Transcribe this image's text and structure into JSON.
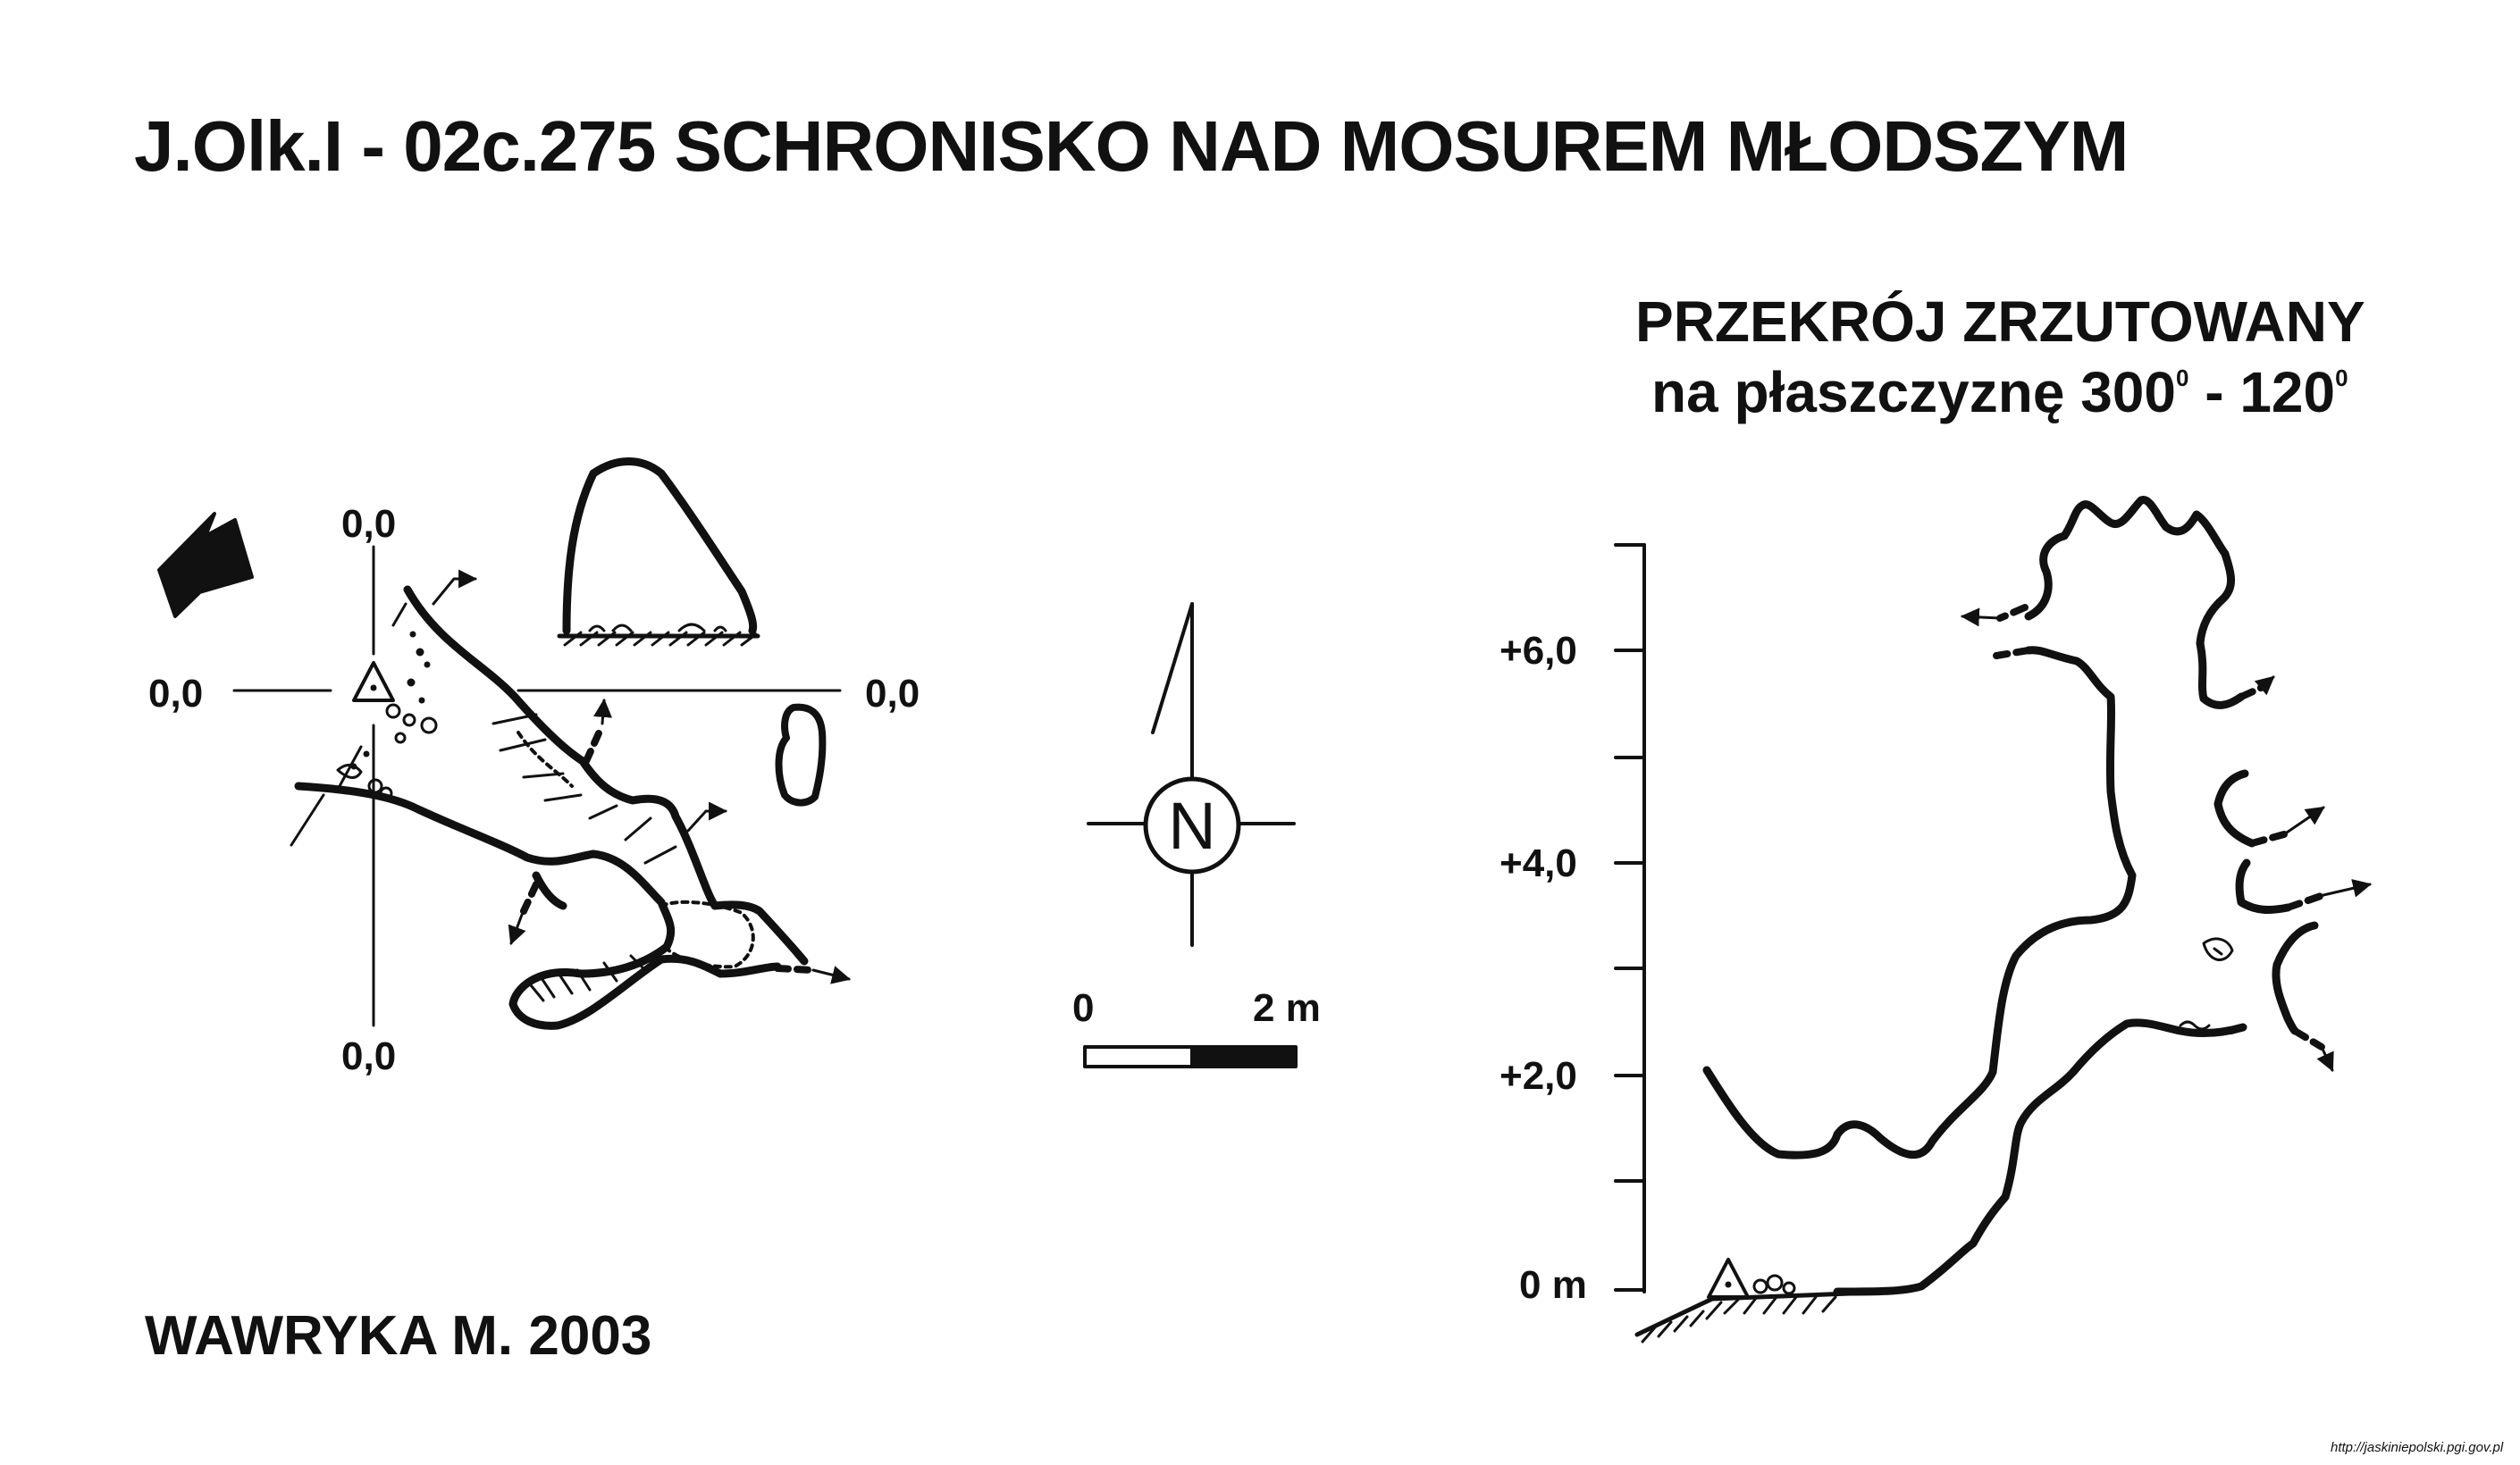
{
  "title": "J.Olk.I - 02c.275  SCHRONISKO NAD MOSUREM MŁODSZYM",
  "section": {
    "line1": "PRZEKRÓJ ZRZUTOWANY",
    "prefix": "na płaszczyznę 300",
    "sup1": "0",
    "mid": " - 120",
    "sup2": "0"
  },
  "plan": {
    "axis_top": "0,0",
    "axis_left": "0,0",
    "axis_right": "0,0",
    "axis_bottom": "0,0"
  },
  "north_label": "N",
  "scale_bar": {
    "start": "0",
    "end": "2 m"
  },
  "elevation_labels": [
    "+6,0",
    "+4,0",
    "+2,0",
    "0 m"
  ],
  "author": "WAWRYKA M. 2003",
  "source": "http://jaskiniepolski.pgi.gov.pl"
}
